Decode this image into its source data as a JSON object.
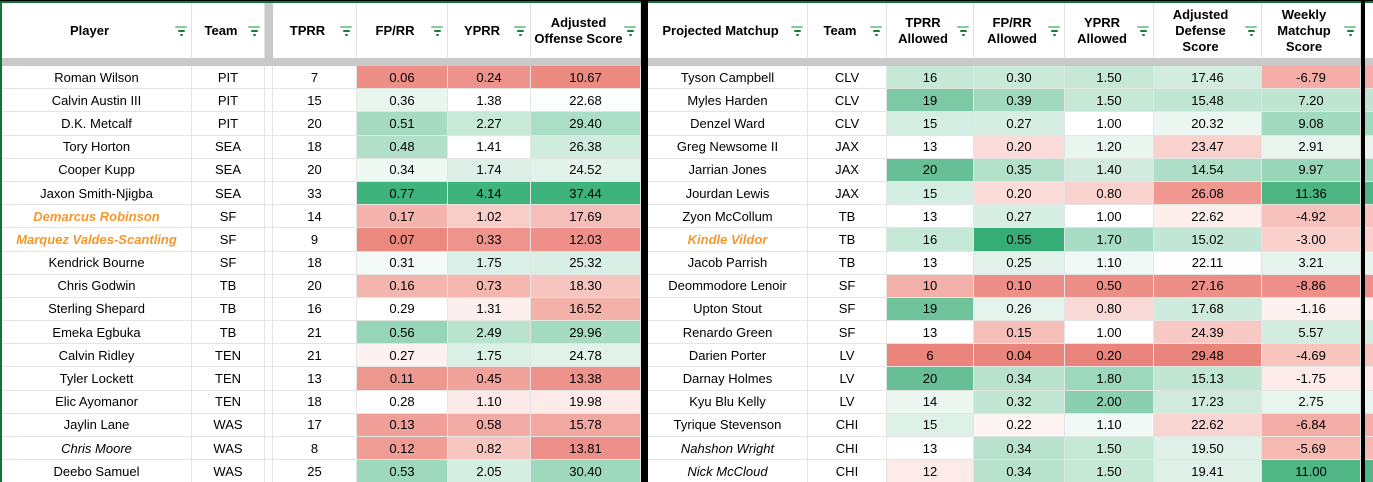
{
  "colors": {
    "range_border": "#137333",
    "section_divider": "#000000",
    "hidden_band": "#c9c9c9",
    "gridline": "#e3e5e3",
    "orange_player": "#f7972a",
    "filter_icon": "#188038",
    "heatmap_max_green": "#3eb37d",
    "heatmap_max_red": "#ea857c"
  },
  "left_table": {
    "headers": [
      "Player",
      "Team",
      "TPRR",
      "FP/RR",
      "YPRR",
      "Adjusted Offense Score"
    ],
    "rows": [
      {
        "name": "Roman Wilson",
        "style": "normal",
        "team": "PIT",
        "values": [
          {
            "v": "7",
            "c": "#ffffff"
          },
          {
            "v": "0.06",
            "c": "#ed8f86"
          },
          {
            "v": "0.24",
            "c": "#ee938b"
          },
          {
            "v": "10.67",
            "c": "#ed8a80"
          }
        ]
      },
      {
        "name": "Calvin Austin III",
        "style": "normal",
        "team": "PIT",
        "values": [
          {
            "v": "15",
            "c": "#ffffff"
          },
          {
            "v": "0.36",
            "c": "#e9f6f0"
          },
          {
            "v": "1.38",
            "c": "#ffffff"
          },
          {
            "v": "22.68",
            "c": "#fcfefd"
          }
        ]
      },
      {
        "name": "D.K. Metcalf",
        "style": "normal",
        "team": "PIT",
        "values": [
          {
            "v": "20",
            "c": "#ffffff"
          },
          {
            "v": "0.51",
            "c": "#a6dbc2"
          },
          {
            "v": "2.27",
            "c": "#c7e9d8"
          },
          {
            "v": "29.40",
            "c": "#abdec7"
          }
        ]
      },
      {
        "name": "Tory Horton",
        "style": "normal",
        "team": "SEA",
        "values": [
          {
            "v": "18",
            "c": "#ffffff"
          },
          {
            "v": "0.48",
            "c": "#b1dfc9"
          },
          {
            "v": "1.41",
            "c": "#ffffff"
          },
          {
            "v": "26.38",
            "c": "#d0ecdf"
          }
        ]
      },
      {
        "name": "Cooper Kupp",
        "style": "normal",
        "team": "SEA",
        "values": [
          {
            "v": "20",
            "c": "#ffffff"
          },
          {
            "v": "0.34",
            "c": "#eff9f4"
          },
          {
            "v": "1.74",
            "c": "#dcf0e7"
          },
          {
            "v": "24.52",
            "c": "#e2f3ec"
          }
        ]
      },
      {
        "name": "Jaxon Smith-Njigba",
        "style": "normal",
        "team": "SEA",
        "values": [
          {
            "v": "33",
            "c": "#ffffff"
          },
          {
            "v": "0.77",
            "c": "#3eb37d"
          },
          {
            "v": "4.14",
            "c": "#3eb37d"
          },
          {
            "v": "37.44",
            "c": "#3eb37d"
          }
        ]
      },
      {
        "name": "Demarcus Robinson",
        "style": "orange-italic",
        "team": "SF",
        "values": [
          {
            "v": "14",
            "c": "#ffffff"
          },
          {
            "v": "0.17",
            "c": "#f4b3ac"
          },
          {
            "v": "1.02",
            "c": "#f9cdc8"
          },
          {
            "v": "17.69",
            "c": "#f6beb8"
          }
        ]
      },
      {
        "name": "Marquez Valdes-Scantling",
        "style": "orange-italic",
        "team": "SF",
        "values": [
          {
            "v": "9",
            "c": "#ffffff"
          },
          {
            "v": "0.07",
            "c": "#ec897f"
          },
          {
            "v": "0.33",
            "c": "#ee948c"
          },
          {
            "v": "12.03",
            "c": "#ee9089"
          }
        ]
      },
      {
        "name": "Kendrick Bourne",
        "style": "normal",
        "team": "SF",
        "values": [
          {
            "v": "18",
            "c": "#ffffff"
          },
          {
            "v": "0.31",
            "c": "#f3faf7"
          },
          {
            "v": "1.75",
            "c": "#dbf0e6"
          },
          {
            "v": "25.32",
            "c": "#d9efe5"
          }
        ]
      },
      {
        "name": "Chris Godwin",
        "style": "normal",
        "team": "TB",
        "values": [
          {
            "v": "20",
            "c": "#ffffff"
          },
          {
            "v": "0.16",
            "c": "#f4b5ae"
          },
          {
            "v": "0.73",
            "c": "#f5b7b0"
          },
          {
            "v": "18.30",
            "c": "#f7c5c0"
          }
        ]
      },
      {
        "name": "Sterling Shepard",
        "style": "normal",
        "team": "TB",
        "values": [
          {
            "v": "16",
            "c": "#ffffff"
          },
          {
            "v": "0.29",
            "c": "#ffffff"
          },
          {
            "v": "1.31",
            "c": "#fdefee"
          },
          {
            "v": "16.52",
            "c": "#f4b1aa"
          }
        ]
      },
      {
        "name": "Emeka Egbuka",
        "style": "normal",
        "team": "TB",
        "values": [
          {
            "v": "21",
            "c": "#ffffff"
          },
          {
            "v": "0.56",
            "c": "#96d5b8"
          },
          {
            "v": "2.49",
            "c": "#b9e3cf"
          },
          {
            "v": "29.96",
            "c": "#a5dbc1"
          }
        ]
      },
      {
        "name": "Calvin Ridley",
        "style": "normal",
        "team": "TEN",
        "values": [
          {
            "v": "21",
            "c": "#ffffff"
          },
          {
            "v": "0.27",
            "c": "#fdf2f1"
          },
          {
            "v": "1.75",
            "c": "#dbf0e6"
          },
          {
            "v": "24.78",
            "c": "#e0f2ea"
          }
        ]
      },
      {
        "name": "Tyler Lockett",
        "style": "normal",
        "team": "TEN",
        "values": [
          {
            "v": "13",
            "c": "#ffffff"
          },
          {
            "v": "0.11",
            "c": "#ee978f"
          },
          {
            "v": "0.45",
            "c": "#f0a29b"
          },
          {
            "v": "13.38",
            "c": "#ee938b"
          }
        ]
      },
      {
        "name": "Elic Ayomanor",
        "style": "normal",
        "team": "TEN",
        "values": [
          {
            "v": "18",
            "c": "#ffffff"
          },
          {
            "v": "0.28",
            "c": "#fffefe"
          },
          {
            "v": "1.10",
            "c": "#fde9e7"
          },
          {
            "v": "19.98",
            "c": "#fcebe9"
          }
        ]
      },
      {
        "name": "Jaylin Lane",
        "style": "normal",
        "team": "WAS",
        "values": [
          {
            "v": "17",
            "c": "#ffffff"
          },
          {
            "v": "0.13",
            "c": "#f0a099"
          },
          {
            "v": "0.58",
            "c": "#f3aca5"
          },
          {
            "v": "15.78",
            "c": "#f2a8a1"
          }
        ]
      },
      {
        "name": "Chris Moore",
        "style": "italic",
        "team": "WAS",
        "values": [
          {
            "v": "8",
            "c": "#ffffff"
          },
          {
            "v": "0.12",
            "c": "#f09d95"
          },
          {
            "v": "0.82",
            "c": "#f8c7c2"
          },
          {
            "v": "13.81",
            "c": "#ee9089"
          }
        ]
      },
      {
        "name": "Deebo Samuel",
        "style": "normal",
        "team": "WAS",
        "values": [
          {
            "v": "25",
            "c": "#ffffff"
          },
          {
            "v": "0.53",
            "c": "#9fd9bd"
          },
          {
            "v": "2.05",
            "c": "#d5eee2"
          },
          {
            "v": "30.40",
            "c": "#9fd9bd"
          }
        ]
      }
    ]
  },
  "right_table": {
    "headers": [
      "Projected Matchup",
      "Team",
      "TPRR Allowed",
      "FP/RR Allowed",
      "YPRR Allowed",
      "Adjusted Defense Score",
      "Weekly Matchup Score"
    ],
    "rows": [
      {
        "name": "Tyson Campbell",
        "style": "normal",
        "team": "CLV",
        "values": [
          {
            "v": "16",
            "c": "#c5e8d7"
          },
          {
            "v": "0.30",
            "c": "#c9e9d9"
          },
          {
            "v": "1.50",
            "c": "#c6e8d7"
          },
          {
            "v": "17.46",
            "c": "#d2ecdf"
          },
          {
            "v": "-6.79",
            "c": "#f4aea7"
          }
        ]
      },
      {
        "name": "Myles Harden",
        "style": "normal",
        "team": "CLV",
        "values": [
          {
            "v": "19",
            "c": "#7ec9a5"
          },
          {
            "v": "0.39",
            "c": "#a0d9be"
          },
          {
            "v": "1.50",
            "c": "#c6e8d7"
          },
          {
            "v": "15.48",
            "c": "#c0e5d3"
          },
          {
            "v": "7.20",
            "c": "#bfe5d2"
          }
        ]
      },
      {
        "name": "Denzel Ward",
        "style": "normal",
        "team": "CLV",
        "values": [
          {
            "v": "15",
            "c": "#d5eee3"
          },
          {
            "v": "0.27",
            "c": "#d6eee3"
          },
          {
            "v": "1.00",
            "c": "#ffffff"
          },
          {
            "v": "20.32",
            "c": "#ecf7f1"
          },
          {
            "v": "9.08",
            "c": "#a2dac0"
          }
        ]
      },
      {
        "name": "Greg Newsome II",
        "style": "normal",
        "team": "JAX",
        "values": [
          {
            "v": "13",
            "c": "#ffffff"
          },
          {
            "v": "0.20",
            "c": "#fbdcd8"
          },
          {
            "v": "1.20",
            "c": "#e9f6f0"
          },
          {
            "v": "23.47",
            "c": "#f9d2ce"
          },
          {
            "v": "2.91",
            "c": "#e7f5ee"
          }
        ]
      },
      {
        "name": "Jarrian Jones",
        "style": "normal",
        "team": "JAX",
        "values": [
          {
            "v": "20",
            "c": "#66bf96"
          },
          {
            "v": "0.35",
            "c": "#b4e1cc"
          },
          {
            "v": "1.40",
            "c": "#d1ebdf"
          },
          {
            "v": "14.54",
            "c": "#aedec8"
          },
          {
            "v": "9.97",
            "c": "#98d6ba"
          }
        ]
      },
      {
        "name": "Jourdan Lewis",
        "style": "normal",
        "team": "JAX",
        "values": [
          {
            "v": "15",
            "c": "#d5eee3"
          },
          {
            "v": "0.20",
            "c": "#fbdcd8"
          },
          {
            "v": "0.80",
            "c": "#f9d1cd"
          },
          {
            "v": "26.08",
            "c": "#f0988f"
          },
          {
            "v": "11.36",
            "c": "#4db583"
          }
        ]
      },
      {
        "name": "Zyon McCollum",
        "style": "normal",
        "team": "TB",
        "values": [
          {
            "v": "13",
            "c": "#ffffff"
          },
          {
            "v": "0.27",
            "c": "#d6eee3"
          },
          {
            "v": "1.00",
            "c": "#ffffff"
          },
          {
            "v": "22.62",
            "c": "#fdeeec"
          },
          {
            "v": "-4.92",
            "c": "#f7c2bc"
          }
        ]
      },
      {
        "name": "Kindle Vildor",
        "style": "orange-italic",
        "team": "TB",
        "values": [
          {
            "v": "16",
            "c": "#c5e8d7"
          },
          {
            "v": "0.55",
            "c": "#36ac76"
          },
          {
            "v": "1.70",
            "c": "#a8dcc4"
          },
          {
            "v": "15.02",
            "c": "#c2e6d5"
          },
          {
            "v": "-3.00",
            "c": "#f9d0cb"
          }
        ]
      },
      {
        "name": "Jacob Parrish",
        "style": "normal",
        "team": "TB",
        "values": [
          {
            "v": "13",
            "c": "#ffffff"
          },
          {
            "v": "0.25",
            "c": "#e2f2eb"
          },
          {
            "v": "1.10",
            "c": "#f0f9f5"
          },
          {
            "v": "22.11",
            "c": "#fefefe"
          },
          {
            "v": "3.21",
            "c": "#e5f4ed"
          }
        ]
      },
      {
        "name": "Deommodore Lenoir",
        "style": "normal",
        "team": "SF",
        "values": [
          {
            "v": "10",
            "c": "#f2b0a9"
          },
          {
            "v": "0.10",
            "c": "#ee8f87"
          },
          {
            "v": "0.50",
            "c": "#ee8f87"
          },
          {
            "v": "27.16",
            "c": "#ee8f87"
          },
          {
            "v": "-8.86",
            "c": "#ee9089"
          }
        ]
      },
      {
        "name": "Upton Stout",
        "style": "normal",
        "team": "SF",
        "values": [
          {
            "v": "19",
            "c": "#6fc39b"
          },
          {
            "v": "0.26",
            "c": "#e4f3ec"
          },
          {
            "v": "0.80",
            "c": "#fadad6"
          },
          {
            "v": "17.68",
            "c": "#cdeadd"
          },
          {
            "v": "-1.16",
            "c": "#fdf2f0"
          }
        ]
      },
      {
        "name": "Renardo Green",
        "style": "normal",
        "team": "SF",
        "values": [
          {
            "v": "13",
            "c": "#ffffff"
          },
          {
            "v": "0.15",
            "c": "#f6beb8"
          },
          {
            "v": "1.00",
            "c": "#ffffff"
          },
          {
            "v": "24.39",
            "c": "#f8c9c4"
          },
          {
            "v": "5.57",
            "c": "#d3ece0"
          }
        ]
      },
      {
        "name": "Darien Porter",
        "style": "normal",
        "team": "LV",
        "values": [
          {
            "v": "6",
            "c": "#ea857c"
          },
          {
            "v": "0.04",
            "c": "#ea857c"
          },
          {
            "v": "0.20",
            "c": "#ea857c"
          },
          {
            "v": "29.48",
            "c": "#ea857c"
          },
          {
            "v": "-4.69",
            "c": "#f7c4be"
          }
        ]
      },
      {
        "name": "Darnay Holmes",
        "style": "normal",
        "team": "LV",
        "values": [
          {
            "v": "20",
            "c": "#66bf96"
          },
          {
            "v": "0.34",
            "c": "#b8e2ce"
          },
          {
            "v": "1.80",
            "c": "#9cd8bc"
          },
          {
            "v": "15.13",
            "c": "#c1e6d4"
          },
          {
            "v": "-1.75",
            "c": "#fcebe9"
          }
        ]
      },
      {
        "name": "Kyu Blu Kelly",
        "style": "normal",
        "team": "LV",
        "values": [
          {
            "v": "14",
            "c": "#ecf7f2"
          },
          {
            "v": "0.32",
            "c": "#c1e6d4"
          },
          {
            "v": "2.00",
            "c": "#8bd0ae"
          },
          {
            "v": "17.23",
            "c": "#d0ebde"
          },
          {
            "v": "2.75",
            "c": "#e8f5ef"
          }
        ]
      },
      {
        "name": "Tyrique Stevenson",
        "style": "normal",
        "team": "CHI",
        "values": [
          {
            "v": "15",
            "c": "#ddf1e8"
          },
          {
            "v": "0.22",
            "c": "#fdf4f3"
          },
          {
            "v": "1.10",
            "c": "#f0f9f5"
          },
          {
            "v": "22.62",
            "c": "#f9d5d1"
          },
          {
            "v": "-6.84",
            "c": "#f4ada6"
          }
        ]
      },
      {
        "name": "Nahshon Wright",
        "style": "italic",
        "team": "CHI",
        "values": [
          {
            "v": "13",
            "c": "#ffffff"
          },
          {
            "v": "0.34",
            "c": "#b8e2ce"
          },
          {
            "v": "1.50",
            "c": "#c6e8d7"
          },
          {
            "v": "19.50",
            "c": "#e0f1e9"
          },
          {
            "v": "-5.69",
            "c": "#f6bab3"
          }
        ]
      },
      {
        "name": "Nick McCloud",
        "style": "italic",
        "team": "CHI",
        "values": [
          {
            "v": "12",
            "c": "#fcebe9"
          },
          {
            "v": "0.34",
            "c": "#b8e2ce"
          },
          {
            "v": "1.50",
            "c": "#c6e8d7"
          },
          {
            "v": "19.41",
            "c": "#e0f1e9"
          },
          {
            "v": "11.00",
            "c": "#50b685"
          }
        ]
      }
    ]
  }
}
